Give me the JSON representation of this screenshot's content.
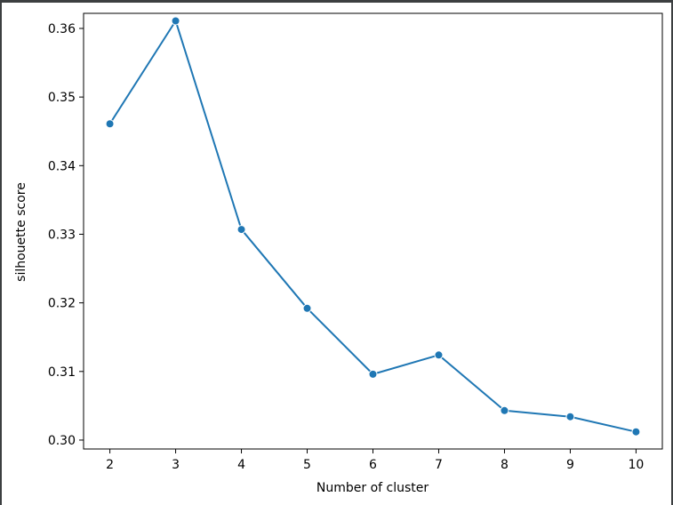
{
  "chart_data": {
    "type": "line",
    "title": "",
    "xlabel": "Number of cluster",
    "ylabel": "silhouette score",
    "x": [
      2,
      3,
      4,
      5,
      6,
      7,
      8,
      9,
      10
    ],
    "xticks": [
      "2",
      "3",
      "4",
      "5",
      "6",
      "7",
      "8",
      "9",
      "10"
    ],
    "yticks": [
      "0.30",
      "0.31",
      "0.32",
      "0.33",
      "0.34",
      "0.35",
      "0.36"
    ],
    "xlim": [
      1.6,
      10.4
    ],
    "ylim": [
      0.2987,
      0.3622
    ],
    "series": [
      {
        "values": [
          0.3461,
          0.3611,
          0.3307,
          0.3192,
          0.3096,
          0.3124,
          0.3043,
          0.3034,
          0.3012
        ],
        "color": "#1f77b4",
        "marker": "circle"
      }
    ],
    "grid": false,
    "legend": "none"
  }
}
